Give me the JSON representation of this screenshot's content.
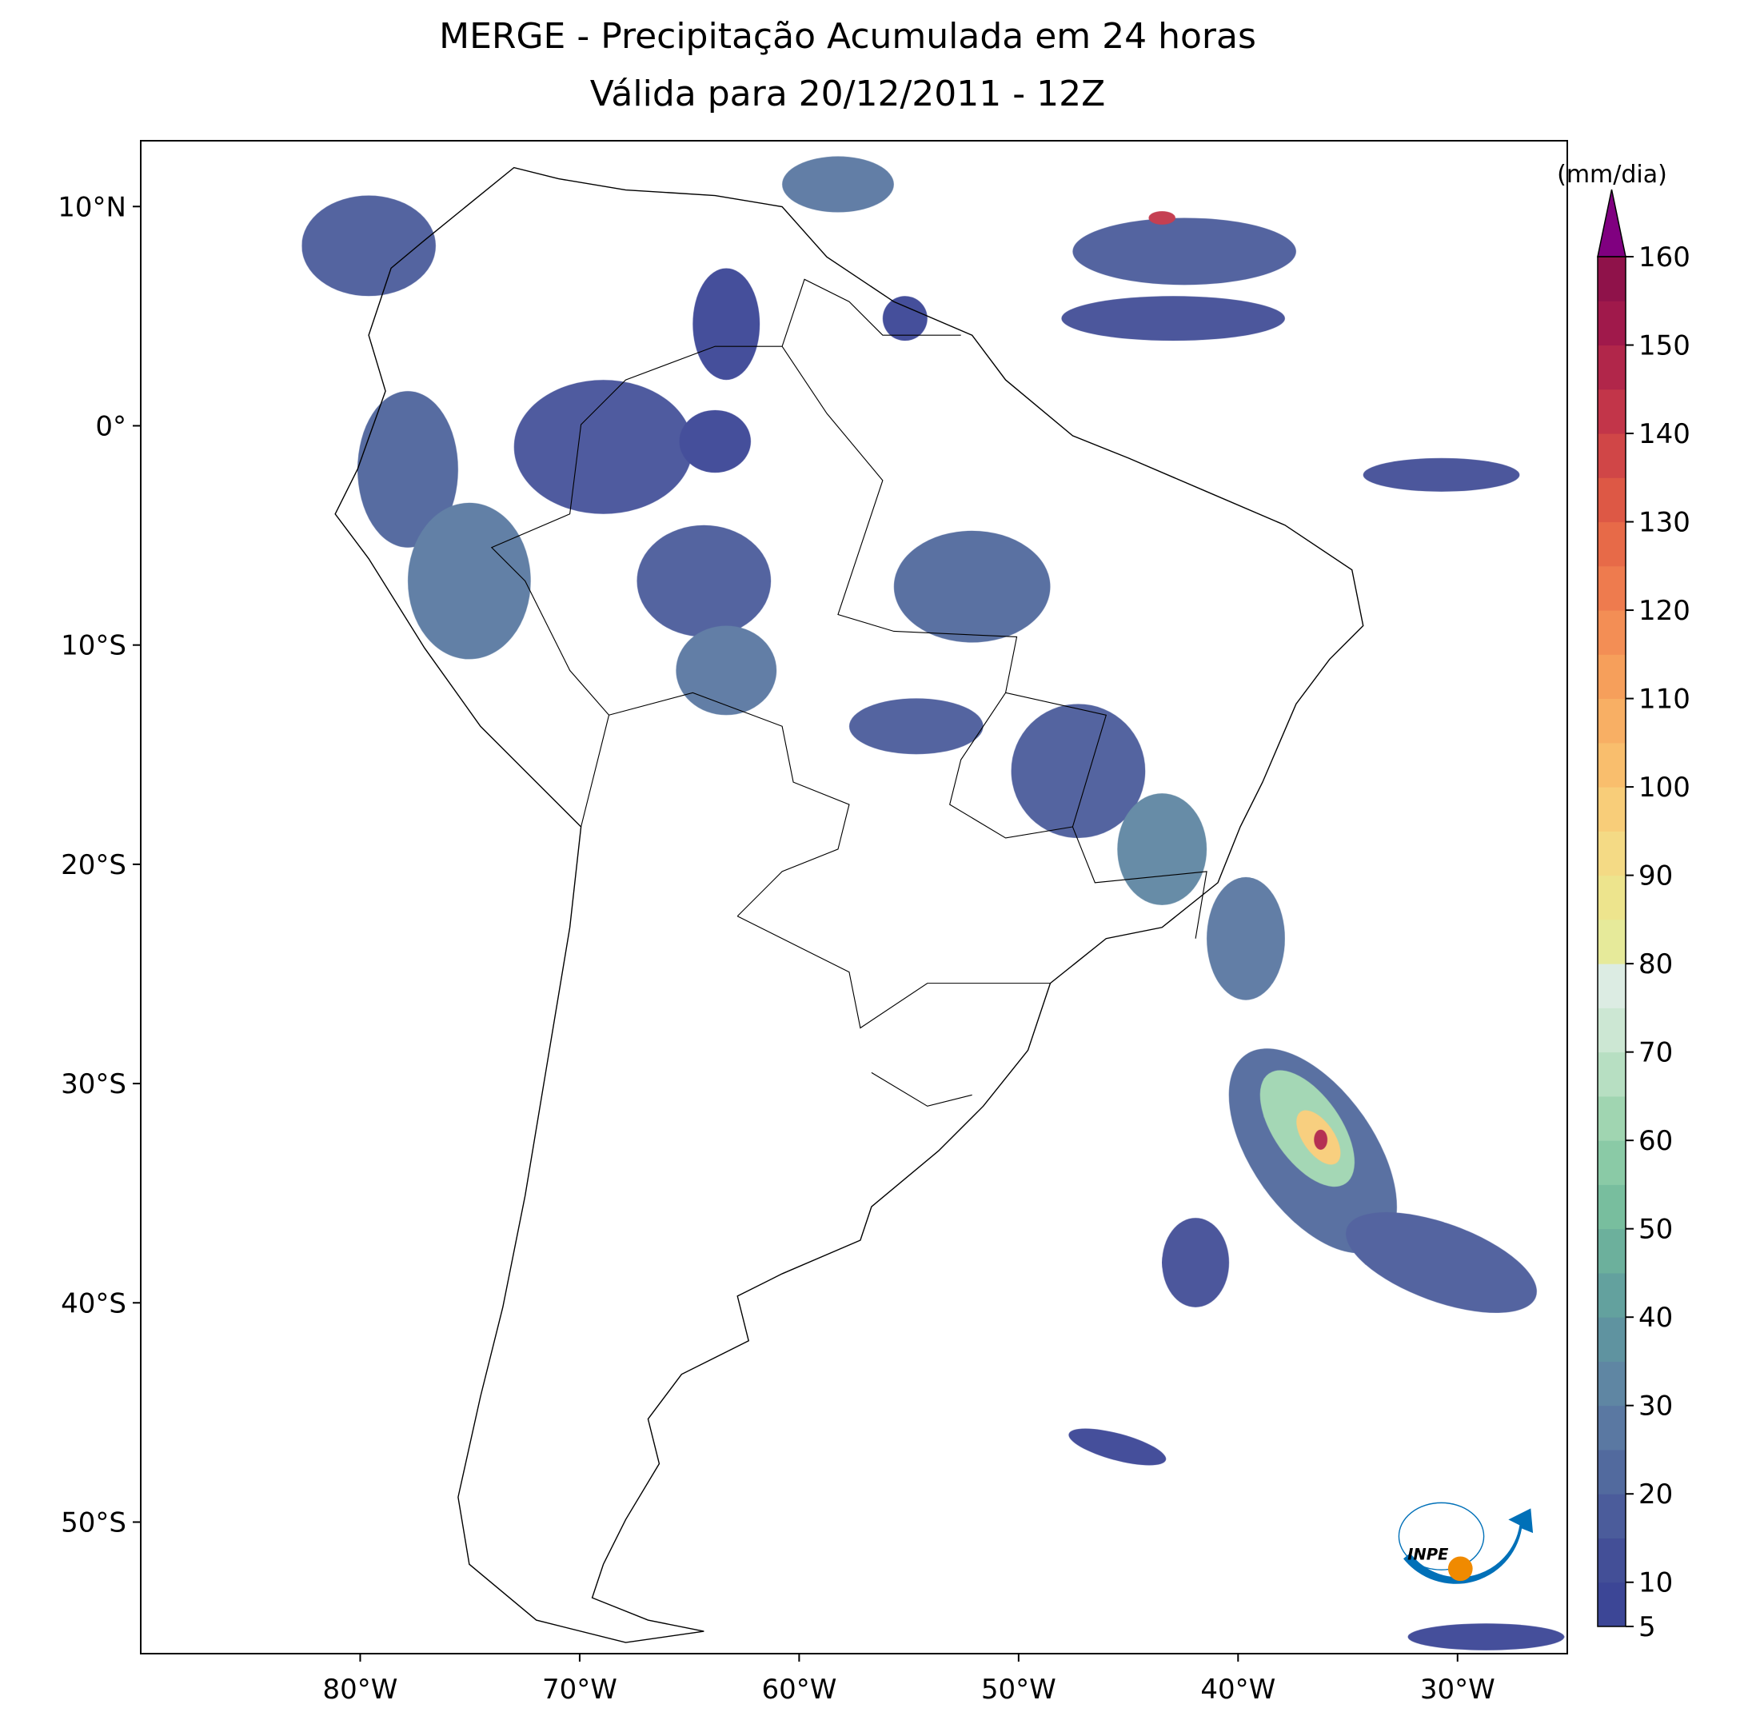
{
  "chart_data": {
    "type": "map",
    "title": "MERGE - Precipitação Acumulada em 24 horas",
    "subtitle": "Válida para 20/12/2011 - 12Z",
    "xlim": [
      -90,
      -25
    ],
    "ylim": [
      -56,
      13
    ],
    "xticks": [
      {
        "value": -80,
        "label": "80°W"
      },
      {
        "value": -70,
        "label": "70°W"
      },
      {
        "value": -60,
        "label": "60°W"
      },
      {
        "value": -50,
        "label": "50°W"
      },
      {
        "value": -40,
        "label": "40°W"
      },
      {
        "value": -30,
        "label": "30°W"
      }
    ],
    "yticks": [
      {
        "value": 10,
        "label": "10°N"
      },
      {
        "value": 0,
        "label": "0°"
      },
      {
        "value": -10,
        "label": "10°S"
      },
      {
        "value": -20,
        "label": "20°S"
      },
      {
        "value": -30,
        "label": "30°S"
      },
      {
        "value": -40,
        "label": "40°S"
      },
      {
        "value": -50,
        "label": "50°S"
      }
    ],
    "colorbar": {
      "label": "(mm/dia)",
      "lim": [
        5,
        160
      ],
      "ticks": [
        5,
        10,
        20,
        30,
        40,
        50,
        60,
        70,
        80,
        90,
        100,
        110,
        120,
        130,
        140,
        150,
        160
      ],
      "colors": [
        "#3c4696",
        "#434f97",
        "#4b5c9b",
        "#526a9e",
        "#5a78a2",
        "#5f86a3",
        "#5f93a0",
        "#63a19e",
        "#6cb09c",
        "#78be9e",
        "#8acaa6",
        "#a0d5b1",
        "#b7dfc2",
        "#cce7d3",
        "#dcece3",
        "#e6ea9a",
        "#ede48d",
        "#f4da85",
        "#f8cd79",
        "#f9be6d",
        "#f8af64",
        "#f69f5b",
        "#f38e55",
        "#ee7b4e",
        "#e76a48",
        "#dd5845",
        "#d04647",
        "#c23549",
        "#b1264a",
        "#a0194b",
        "#8f124a"
      ],
      "extend_color": "#800080"
    },
    "logo_text": "INPE"
  }
}
